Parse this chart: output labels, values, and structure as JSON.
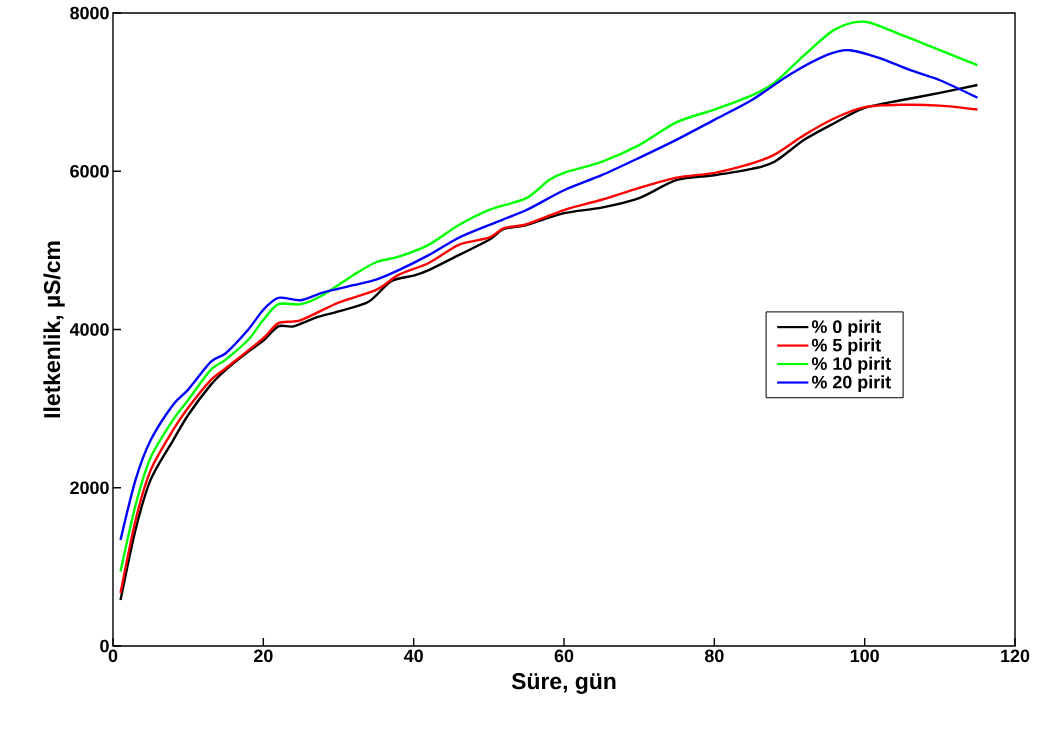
{
  "chart_data": {
    "type": "line",
    "xlabel": "Süre, gün",
    "ylabel": "Iletkenlik, µS/cm",
    "xlim": [
      0,
      120
    ],
    "ylim": [
      0,
      8000
    ],
    "xticks": [
      0,
      20,
      40,
      60,
      80,
      100,
      120
    ],
    "yticks": [
      0,
      2000,
      4000,
      6000,
      8000
    ],
    "grid": false,
    "legend": "right",
    "marker": "none",
    "line_style": "solid",
    "series": [
      {
        "name": "% 0 pirit",
        "color": "#000000",
        "x": [
          1,
          3,
          5,
          8,
          10,
          13,
          15,
          18,
          20,
          22,
          24,
          27,
          30,
          34,
          37,
          40,
          42,
          46,
          50,
          52,
          55,
          60,
          65,
          70,
          75,
          80,
          85,
          88,
          92,
          96,
          100,
          105,
          110,
          115
        ],
        "values": [
          580,
          1470,
          2100,
          2600,
          2920,
          3300,
          3490,
          3720,
          3860,
          4040,
          4040,
          4150,
          4230,
          4350,
          4610,
          4680,
          4750,
          4940,
          5130,
          5270,
          5320,
          5470,
          5540,
          5660,
          5890,
          5950,
          6030,
          6120,
          6400,
          6610,
          6800,
          6900,
          6990,
          7090
        ]
      },
      {
        "name": "% 5 pirit",
        "color": "#ff0000",
        "x": [
          1,
          3,
          5,
          8,
          10,
          13,
          15,
          20,
          22,
          25,
          30,
          35,
          38,
          42,
          46,
          50,
          52,
          55,
          60,
          65,
          70,
          75,
          80,
          85,
          88,
          92,
          96,
          100,
          105,
          110,
          115
        ],
        "values": [
          670,
          1590,
          2220,
          2730,
          3010,
          3360,
          3510,
          3890,
          4080,
          4120,
          4340,
          4500,
          4690,
          4840,
          5070,
          5160,
          5280,
          5330,
          5510,
          5640,
          5790,
          5920,
          5980,
          6100,
          6210,
          6460,
          6670,
          6810,
          6840,
          6830,
          6780
        ]
      },
      {
        "name": "% 10 pirit",
        "color": "#00ff00",
        "x": [
          1,
          3,
          5,
          8,
          10,
          13,
          15,
          18,
          20,
          22,
          25,
          28,
          32,
          35,
          38,
          42,
          46,
          50,
          55,
          58,
          60,
          65,
          70,
          75,
          80,
          85,
          88,
          92,
          96,
          100,
          105,
          110,
          115
        ],
        "values": [
          940,
          1780,
          2380,
          2860,
          3110,
          3490,
          3620,
          3870,
          4120,
          4320,
          4320,
          4440,
          4690,
          4850,
          4920,
          5070,
          5320,
          5510,
          5660,
          5890,
          5980,
          6120,
          6330,
          6620,
          6780,
          6960,
          7120,
          7470,
          7790,
          7890,
          7720,
          7530,
          7340
        ]
      },
      {
        "name": "% 20 pirit",
        "color": "#0000ff",
        "x": [
          1,
          3,
          5,
          8,
          10,
          13,
          15,
          18,
          20,
          22,
          25,
          28,
          32,
          35,
          38,
          42,
          46,
          50,
          55,
          60,
          65,
          70,
          75,
          80,
          85,
          90,
          95,
          98,
          102,
          106,
          110,
          115
        ],
        "values": [
          1340,
          2100,
          2600,
          3050,
          3240,
          3590,
          3700,
          4000,
          4250,
          4400,
          4370,
          4470,
          4560,
          4630,
          4750,
          4940,
          5160,
          5320,
          5510,
          5760,
          5950,
          6170,
          6400,
          6650,
          6900,
          7220,
          7470,
          7530,
          7430,
          7280,
          7150,
          6930
        ]
      }
    ]
  }
}
